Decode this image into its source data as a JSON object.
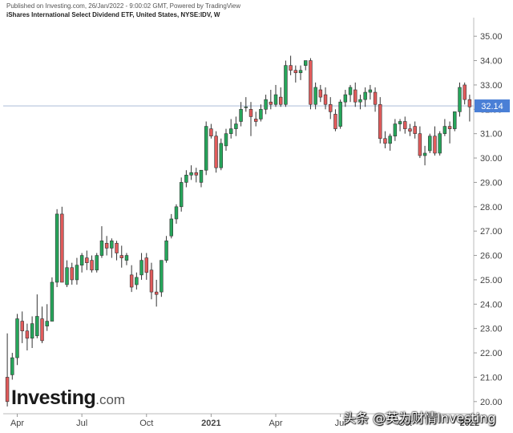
{
  "header": {
    "published": "Published on Investing.com, 26/Jan/2022 - 9:00:02 GMT, Powered by TradingView",
    "instrument": "iShares International Select Dividend ETF, United States, NYSE:IDV, W"
  },
  "logo": {
    "main": "Investing",
    "suffix": ".com"
  },
  "watermark": "头条 @英为财情Investing",
  "last_price": "32.14",
  "colors": {
    "up": "#26a65b",
    "down": "#e15b5b",
    "last_price_bg": "#4a7fd6"
  },
  "chart_data": {
    "type": "candlestick",
    "title": "",
    "ylim": [
      19.5,
      35.5
    ],
    "y_ticks": [
      "20.00",
      "21.00",
      "22.00",
      "23.00",
      "24.00",
      "25.00",
      "26.00",
      "27.00",
      "28.00",
      "29.00",
      "30.00",
      "31.00",
      "32.00",
      "33.00",
      "34.00",
      "35.00"
    ],
    "x_ticks": [
      {
        "label": "Apr",
        "index": 2
      },
      {
        "label": "Jul",
        "index": 15
      },
      {
        "label": "Oct",
        "index": 28
      },
      {
        "label": "2021",
        "index": 41
      },
      {
        "label": "Apr",
        "index": 54
      },
      {
        "label": "Jul",
        "index": 67
      },
      {
        "label": "Oct",
        "index": 80
      },
      {
        "label": "2022",
        "index": 93
      }
    ],
    "last_price": 32.14,
    "candles": [
      [
        21.0,
        22.8,
        19.8,
        20.0
      ],
      [
        21.1,
        22.0,
        20.9,
        21.8
      ],
      [
        21.8,
        23.6,
        21.5,
        23.4
      ],
      [
        23.3,
        23.7,
        22.4,
        22.9
      ],
      [
        22.9,
        23.2,
        22.1,
        22.6
      ],
      [
        22.6,
        23.5,
        22.2,
        23.2
      ],
      [
        22.7,
        24.4,
        22.6,
        23.5
      ],
      [
        23.4,
        23.9,
        22.4,
        22.5
      ],
      [
        23.1,
        24.0,
        22.9,
        23.3
      ],
      [
        23.3,
        25.1,
        23.3,
        24.9
      ],
      [
        24.9,
        27.9,
        24.7,
        27.7
      ],
      [
        27.7,
        28.0,
        25.0,
        24.9
      ],
      [
        24.8,
        25.8,
        24.7,
        25.5
      ],
      [
        25.5,
        25.7,
        24.8,
        25.0
      ],
      [
        25.0,
        25.9,
        24.8,
        25.6
      ],
      [
        25.6,
        26.1,
        25.3,
        26.0
      ],
      [
        25.9,
        26.2,
        25.4,
        25.7
      ],
      [
        25.8,
        26.0,
        25.3,
        25.4
      ],
      [
        25.4,
        26.1,
        25.3,
        26.0
      ],
      [
        26.0,
        27.2,
        25.9,
        26.6
      ],
      [
        26.5,
        26.8,
        26.0,
        26.3
      ],
      [
        26.3,
        26.7,
        25.9,
        26.6
      ],
      [
        26.5,
        26.6,
        25.8,
        26.1
      ],
      [
        26.0,
        26.4,
        25.5,
        25.9
      ],
      [
        25.8,
        26.1,
        25.6,
        26.0
      ],
      [
        25.2,
        25.6,
        24.5,
        24.7
      ],
      [
        24.8,
        25.3,
        24.6,
        25.1
      ],
      [
        25.2,
        26.1,
        25.0,
        25.8
      ],
      [
        25.9,
        26.1,
        25.0,
        25.3
      ],
      [
        25.4,
        25.7,
        24.2,
        24.5
      ],
      [
        24.5,
        25.0,
        23.9,
        24.4
      ],
      [
        24.5,
        25.8,
        24.3,
        25.8
      ],
      [
        25.8,
        26.8,
        25.7,
        26.6
      ],
      [
        26.8,
        27.7,
        26.7,
        27.5
      ],
      [
        27.5,
        28.1,
        27.3,
        28.0
      ],
      [
        28.0,
        29.2,
        27.8,
        29.0
      ],
      [
        29.0,
        29.5,
        28.8,
        29.3
      ],
      [
        29.3,
        29.7,
        29.1,
        29.4
      ],
      [
        29.4,
        29.6,
        29.0,
        29.3
      ],
      [
        29.0,
        29.5,
        28.8,
        29.5
      ],
      [
        29.5,
        31.5,
        29.3,
        31.3
      ],
      [
        31.2,
        31.4,
        30.8,
        30.9
      ],
      [
        30.9,
        31.1,
        29.4,
        29.6
      ],
      [
        29.6,
        30.8,
        29.5,
        30.6
      ],
      [
        30.5,
        31.2,
        30.3,
        31.0
      ],
      [
        31.0,
        31.6,
        30.8,
        31.2
      ],
      [
        31.2,
        31.7,
        30.9,
        31.4
      ],
      [
        31.5,
        32.3,
        31.3,
        32.0
      ],
      [
        32.1,
        32.5,
        31.9,
        32.1
      ],
      [
        32.0,
        32.3,
        30.9,
        31.7
      ],
      [
        31.6,
        31.9,
        31.3,
        31.5
      ],
      [
        31.6,
        32.2,
        31.5,
        32.0
      ],
      [
        32.0,
        32.6,
        31.8,
        32.4
      ],
      [
        32.3,
        32.8,
        32.0,
        32.2
      ],
      [
        32.2,
        33.0,
        32.1,
        32.6
      ],
      [
        32.5,
        32.9,
        32.1,
        32.2
      ],
      [
        32.2,
        34.0,
        32.1,
        33.8
      ],
      [
        33.8,
        34.2,
        33.4,
        33.6
      ],
      [
        33.6,
        33.8,
        33.1,
        33.5
      ],
      [
        33.5,
        33.8,
        33.2,
        33.6
      ],
      [
        33.8,
        34.0,
        33.6,
        34.0
      ],
      [
        34.0,
        34.1,
        32.0,
        32.2
      ],
      [
        32.2,
        33.1,
        32.0,
        32.9
      ],
      [
        32.8,
        33.0,
        32.3,
        32.5
      ],
      [
        32.6,
        32.9,
        32.0,
        32.2
      ],
      [
        32.2,
        32.5,
        31.6,
        31.9
      ],
      [
        31.8,
        32.0,
        31.1,
        31.2
      ],
      [
        31.3,
        32.4,
        31.2,
        32.3
      ],
      [
        32.3,
        32.8,
        32.1,
        32.6
      ],
      [
        32.6,
        33.0,
        32.3,
        32.9
      ],
      [
        32.8,
        33.1,
        32.1,
        32.3
      ],
      [
        32.3,
        32.6,
        32.0,
        32.4
      ],
      [
        32.4,
        32.9,
        32.1,
        32.7
      ],
      [
        32.7,
        33.0,
        32.4,
        32.8
      ],
      [
        32.7,
        32.9,
        31.9,
        32.2
      ],
      [
        32.2,
        32.5,
        30.6,
        30.8
      ],
      [
        30.8,
        31.1,
        30.4,
        30.6
      ],
      [
        30.6,
        31.0,
        30.3,
        30.9
      ],
      [
        30.9,
        31.6,
        30.7,
        31.4
      ],
      [
        31.4,
        31.6,
        31.1,
        31.5
      ],
      [
        31.5,
        31.7,
        31.0,
        31.2
      ],
      [
        31.2,
        31.4,
        30.9,
        31.1
      ],
      [
        31.3,
        31.5,
        30.8,
        31.0
      ],
      [
        31.0,
        31.3,
        30.0,
        30.1
      ],
      [
        30.1,
        30.5,
        29.7,
        30.2
      ],
      [
        30.3,
        31.0,
        30.2,
        30.9
      ],
      [
        30.9,
        31.3,
        30.1,
        30.2
      ],
      [
        30.2,
        31.1,
        30.1,
        31.0
      ],
      [
        31.0,
        31.6,
        30.9,
        31.3
      ],
      [
        31.3,
        31.5,
        30.6,
        31.2
      ],
      [
        31.2,
        31.9,
        31.1,
        31.9
      ],
      [
        31.9,
        33.1,
        31.7,
        32.9
      ],
      [
        33.0,
        33.1,
        32.2,
        32.4
      ],
      [
        32.4,
        32.6,
        31.5,
        32.1
      ]
    ]
  }
}
